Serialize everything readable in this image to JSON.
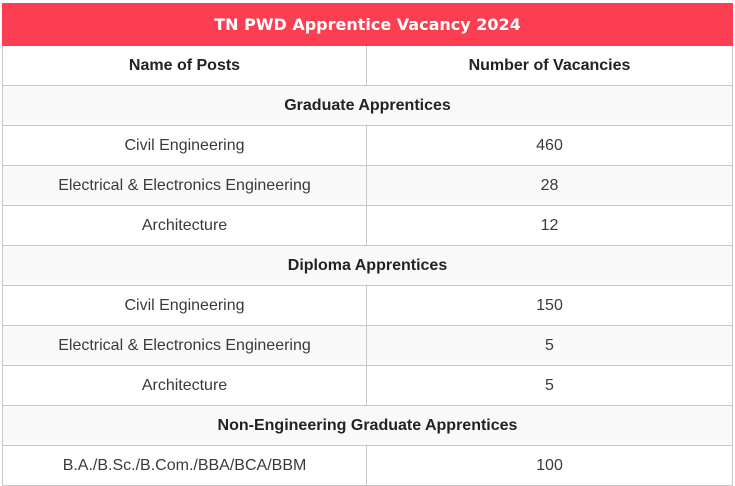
{
  "table": {
    "title": "TN PWD Apprentice Vacancy 2024",
    "headers": {
      "post": "Name of Posts",
      "vacancies": "Number of Vacancies"
    },
    "sections": [
      {
        "name": "Graduate Apprentices",
        "rows": [
          {
            "post": "Civil Engineering",
            "vacancies": "460"
          },
          {
            "post": "Electrical & Electronics Engineering",
            "vacancies": "28"
          },
          {
            "post": "Architecture",
            "vacancies": "12"
          }
        ]
      },
      {
        "name": "Diploma Apprentices",
        "rows": [
          {
            "post": "Civil Engineering",
            "vacancies": "150"
          },
          {
            "post": "Electrical & Electronics Engineering",
            "vacancies": "5"
          },
          {
            "post": "Architecture",
            "vacancies": "5"
          }
        ]
      },
      {
        "name": "Non-Engineering Graduate Apprentices",
        "rows": [
          {
            "post": "B.A./B.Sc./B.Com./BBA/BCA/BBM",
            "vacancies": "100"
          }
        ]
      }
    ]
  }
}
